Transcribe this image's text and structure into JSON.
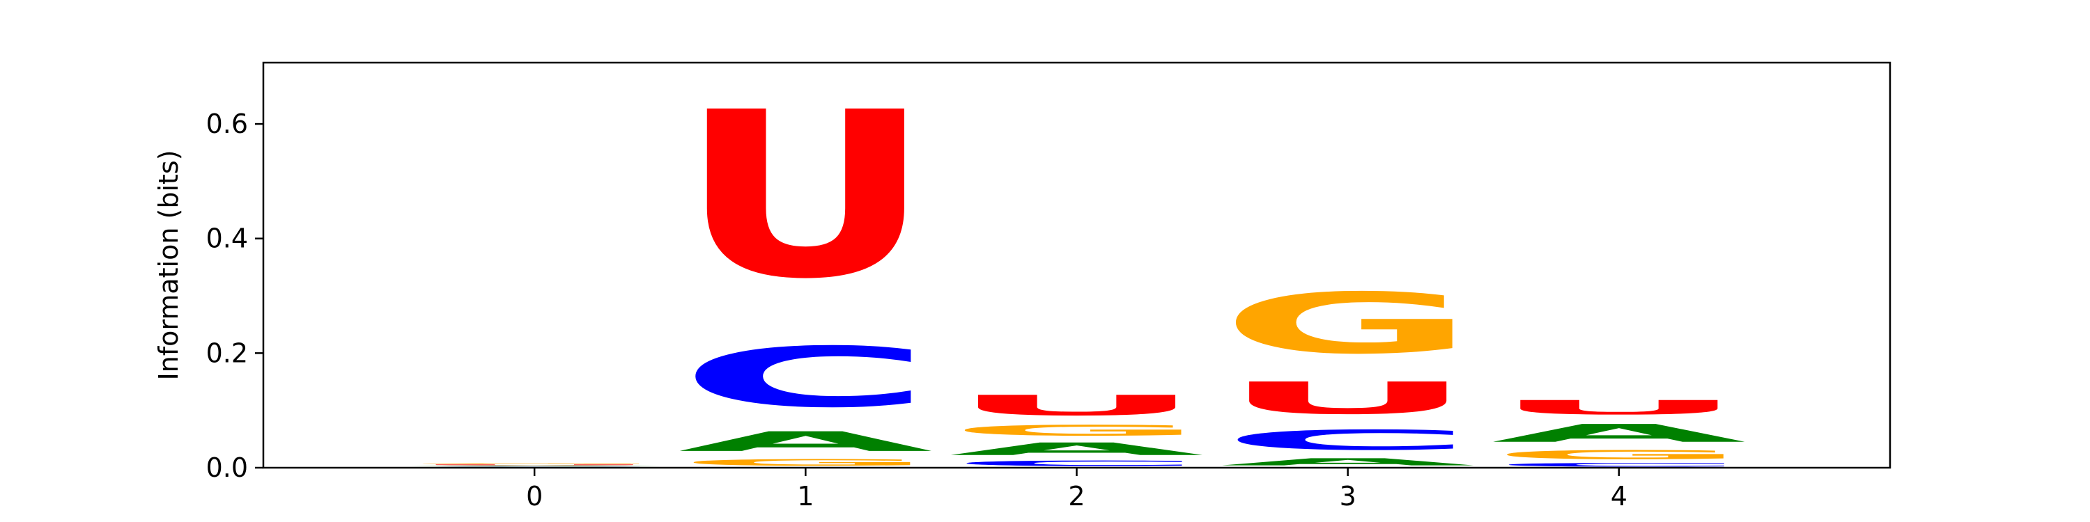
{
  "chart_data": {
    "type": "sequence-logo",
    "ylabel": "Information (bits)",
    "xlabel": "",
    "title": "",
    "xlim": [
      -1,
      5
    ],
    "ylim": [
      0,
      0.707
    ],
    "x_ticks": [
      "0",
      "1",
      "2",
      "3",
      "4"
    ],
    "y_ticks": [
      "0.0",
      "0.2",
      "0.4",
      "0.6"
    ],
    "grid": false,
    "legend": "none",
    "colors": {
      "A": "#008000",
      "C": "#0000ff",
      "G": "#ffa500",
      "U": "#ff0000"
    },
    "positions": [
      {
        "position": 0,
        "letters": [
          {
            "letter": "C",
            "value": 0.002
          },
          {
            "letter": "A",
            "value": 0.002
          },
          {
            "letter": "U",
            "value": 0.002
          },
          {
            "letter": "G",
            "value": 0.002
          }
        ]
      },
      {
        "position": 1,
        "letters": [
          {
            "letter": "G",
            "value": 0.018
          },
          {
            "letter": "A",
            "value": 0.055
          },
          {
            "letter": "C",
            "value": 0.168
          },
          {
            "letter": "U",
            "value": 0.466
          }
        ]
      },
      {
        "position": 2,
        "letters": [
          {
            "letter": "C",
            "value": 0.015
          },
          {
            "letter": "A",
            "value": 0.035
          },
          {
            "letter": "G",
            "value": 0.03
          },
          {
            "letter": "U",
            "value": 0.057
          }
        ]
      },
      {
        "position": 3,
        "letters": [
          {
            "letter": "A",
            "value": 0.02
          },
          {
            "letter": "C",
            "value": 0.056
          },
          {
            "letter": "U",
            "value": 0.09
          },
          {
            "letter": "G",
            "value": 0.17
          }
        ]
      },
      {
        "position": 4,
        "letters": [
          {
            "letter": "C",
            "value": 0.01
          },
          {
            "letter": "G",
            "value": 0.025
          },
          {
            "letter": "A",
            "value": 0.05
          },
          {
            "letter": "U",
            "value": 0.04
          }
        ]
      }
    ]
  }
}
